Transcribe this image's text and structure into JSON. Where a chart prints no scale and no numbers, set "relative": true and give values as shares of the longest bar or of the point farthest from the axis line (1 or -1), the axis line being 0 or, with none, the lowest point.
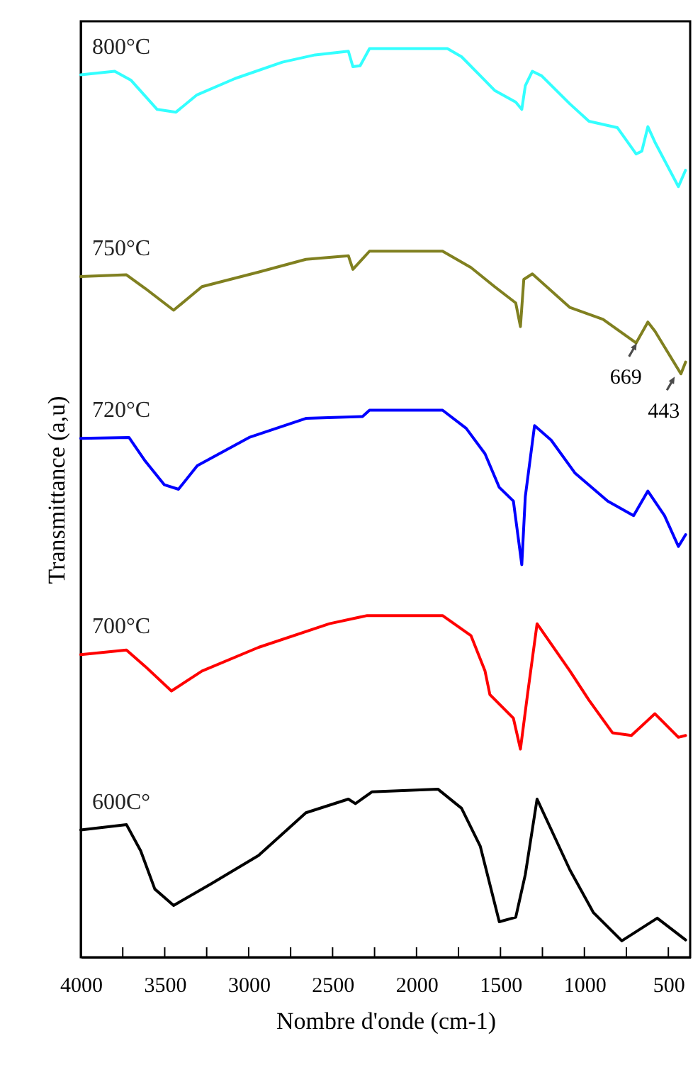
{
  "chart_data": {
    "type": "line",
    "relative": true,
    "xlabel": "Nombre d'onde (cm-1)",
    "ylabel": "Transmittance (a,u)",
    "xlim": [
      4000,
      370
    ],
    "xticks": [
      4000,
      {
        "value": 3750,
        "label": null
      },
      3500,
      {
        "value": 3250,
        "label": null
      },
      3000,
      {
        "value": 2750,
        "label": null
      },
      2500,
      {
        "value": 2250,
        "label": null
      },
      2000,
      {
        "value": 1750,
        "label": null
      },
      1500,
      {
        "value": 1250,
        "label": null
      },
      1000,
      {
        "value": 750,
        "label": null
      },
      500
    ],
    "grid": false,
    "line_style": "solid",
    "marker": "none",
    "series": [
      {
        "name": "800°C",
        "color": "#33ffff",
        "x": [
          4000,
          3798,
          3700,
          3545,
          3433,
          3308,
          3081,
          2799,
          2604,
          2406,
          2379,
          2336,
          2280,
          1816,
          1732,
          1620,
          1535,
          1409,
          1373,
          1352,
          1310,
          1255,
          1086,
          973,
          804,
          692,
          658,
          622,
          580,
          440,
          398
        ],
        "values": [
          0.971,
          0.975,
          0.965,
          0.933,
          0.93,
          0.949,
          0.967,
          0.985,
          0.993,
          0.997,
          0.98,
          0.981,
          1.0,
          1.0,
          0.991,
          0.97,
          0.954,
          0.941,
          0.933,
          0.959,
          0.975,
          0.97,
          0.939,
          0.92,
          0.913,
          0.884,
          0.887,
          0.914,
          0.897,
          0.848,
          0.866
        ]
      },
      {
        "name": "750°C",
        "color": "#808020",
        "x": [
          4000,
          3728,
          3616,
          3447,
          3278,
          2941,
          2659,
          2406,
          2379,
          2280,
          1845,
          1676,
          1535,
          1409,
          1381,
          1361,
          1310,
          1086,
          889,
          692,
          622,
          580,
          425,
          397
        ],
        "values": [
          0.749,
          0.751,
          0.736,
          0.712,
          0.738,
          0.754,
          0.768,
          0.772,
          0.757,
          0.777,
          0.777,
          0.759,
          0.738,
          0.72,
          0.694,
          0.746,
          0.752,
          0.715,
          0.702,
          0.676,
          0.699,
          0.689,
          0.642,
          0.655
        ]
      },
      {
        "name": "720°C",
        "color": "#0000ff",
        "x": [
          4000,
          3713,
          3616,
          3503,
          3418,
          3306,
          2997,
          2659,
          2322,
          2280,
          1845,
          1704,
          1592,
          1507,
          1423,
          1373,
          1352,
          1297,
          1198,
          1057,
          861,
          707,
          622,
          523,
          440,
          397
        ],
        "values": [
          0.571,
          0.572,
          0.546,
          0.52,
          0.515,
          0.541,
          0.572,
          0.593,
          0.595,
          0.602,
          0.602,
          0.582,
          0.554,
          0.517,
          0.502,
          0.432,
          0.507,
          0.585,
          0.569,
          0.533,
          0.502,
          0.486,
          0.513,
          0.486,
          0.452,
          0.465
        ]
      },
      {
        "name": "700°C",
        "color": "#ff0000",
        "x": [
          4000,
          3728,
          3616,
          3460,
          3278,
          2941,
          2519,
          2294,
          1845,
          1676,
          1592,
          1563,
          1423,
          1381,
          1339,
          1282,
          1086,
          973,
          833,
          720,
          580,
          440,
          397
        ],
        "values": [
          0.333,
          0.338,
          0.32,
          0.293,
          0.315,
          0.341,
          0.367,
          0.376,
          0.376,
          0.354,
          0.315,
          0.289,
          0.263,
          0.229,
          0.289,
          0.367,
          0.315,
          0.283,
          0.247,
          0.244,
          0.268,
          0.242,
          0.244
        ]
      },
      {
        "name": "600C°",
        "color": "#000000",
        "x": [
          4000,
          3728,
          3643,
          3559,
          3447,
          3222,
          2941,
          2659,
          2406,
          2364,
          2266,
          1873,
          1732,
          1620,
          1507,
          1409,
          1352,
          1282,
          1086,
          946,
          777,
          566,
          397
        ],
        "values": [
          0.14,
          0.146,
          0.117,
          0.075,
          0.057,
          0.081,
          0.112,
          0.159,
          0.174,
          0.169,
          0.182,
          0.185,
          0.164,
          0.122,
          0.039,
          0.044,
          0.091,
          0.174,
          0.096,
          0.049,
          0.018,
          0.043,
          0.019
        ]
      }
    ],
    "annotations": [
      {
        "text": "669",
        "x": 669,
        "y": 0.684
      },
      {
        "text": "443",
        "x": 443,
        "y": 0.647
      }
    ]
  }
}
